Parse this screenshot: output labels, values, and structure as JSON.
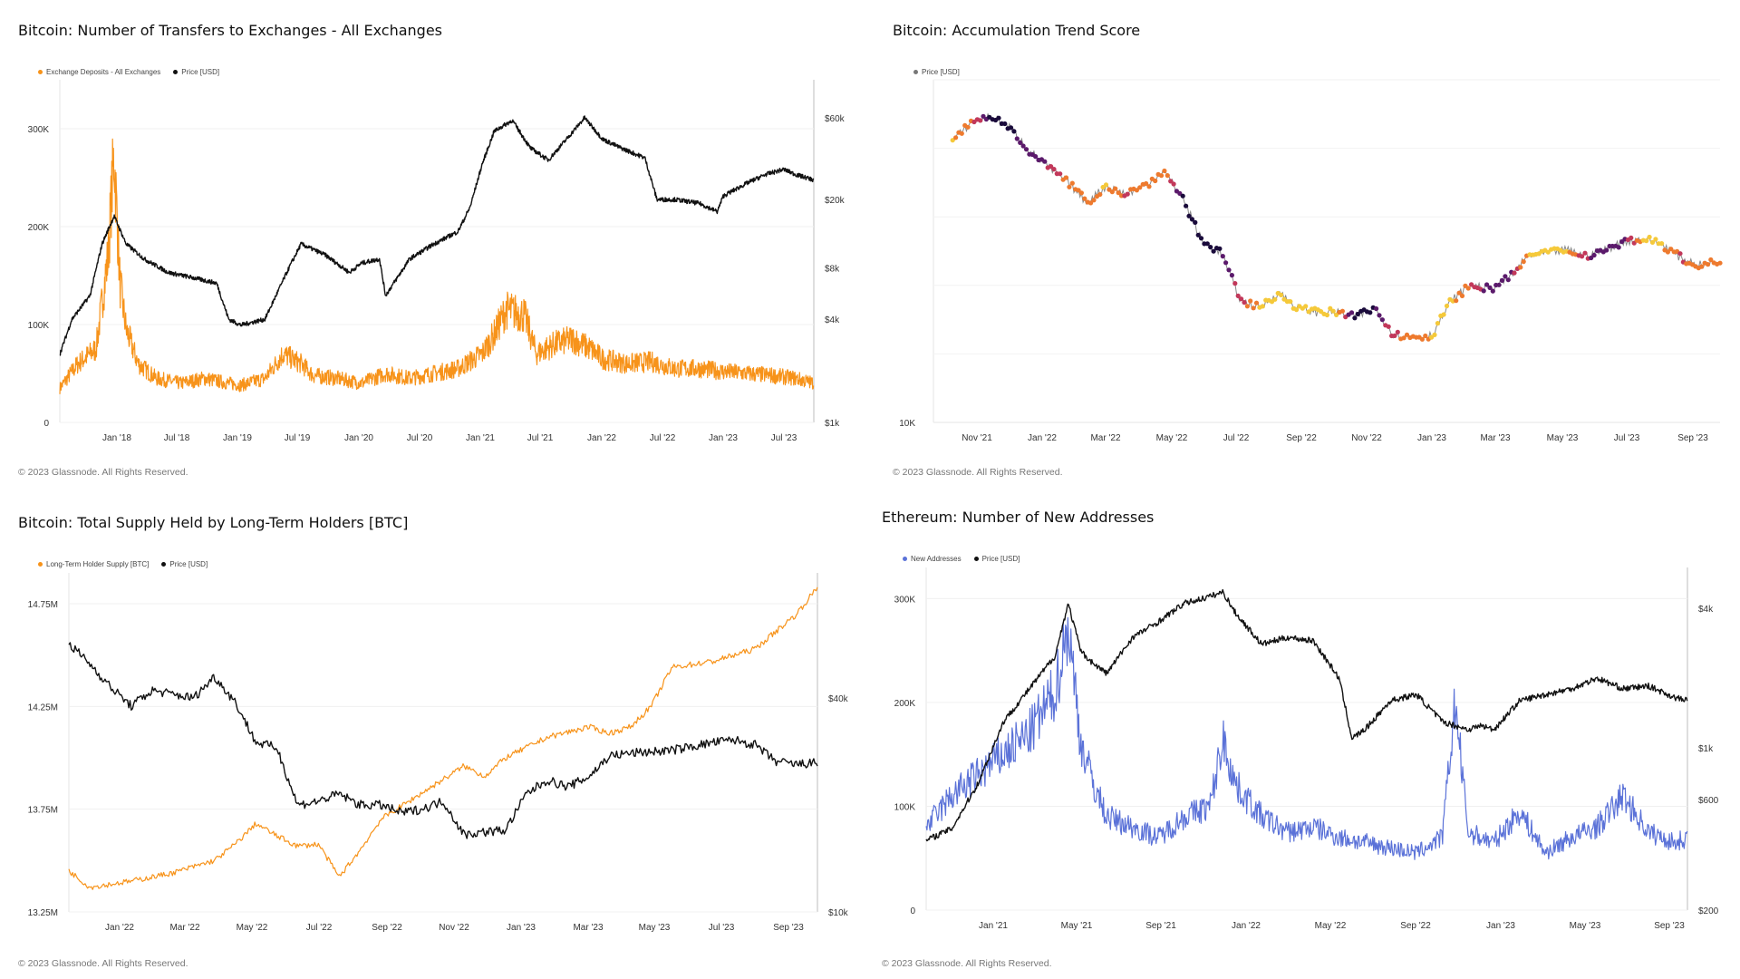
{
  "colors": {
    "orange": "#f7931a",
    "black": "#111111",
    "blue": "#5b72d8",
    "grid": "#eeeeee",
    "axis": "#cfcfcf"
  },
  "copyright": "© 2023 Glassnode. All Rights Reserved.",
  "chart_data": [
    {
      "type": "line",
      "title": "Bitcoin: Number of Transfers to Exchanges - All Exchanges",
      "legend": [
        "Exchange Deposits - All Exchanges",
        "Price [USD]"
      ],
      "x_ticks": [
        "Jan '18",
        "Jul '18",
        "Jan '19",
        "Jul '19",
        "Jan '20",
        "Jul '20",
        "Jan '21",
        "Jul '21",
        "Jan '22",
        "Jul '22",
        "Jan '23",
        "Jul '23"
      ],
      "y_left_ticks": [
        "0",
        "100K",
        "200K",
        "300K"
      ],
      "y_left_values": [
        0,
        100000,
        200000,
        300000
      ],
      "ylim_left": [
        0,
        350000
      ],
      "y_right_ticks": [
        "$1k",
        "$4k",
        "$8k",
        "$20k",
        "$60k"
      ],
      "y_right_values": [
        1000,
        4000,
        8000,
        20000,
        60000
      ],
      "ylim_right_log": [
        1000,
        100000
      ],
      "xlim": [
        2017.5,
        2023.75
      ],
      "series": [
        {
          "name": "Exchange Deposits - All Exchanges",
          "axis": "left",
          "color": "#f7931a",
          "x": [
            2017.5,
            2017.65,
            2017.8,
            2017.9,
            2017.95,
            2018.0,
            2018.05,
            2018.15,
            2018.3,
            2018.5,
            2018.7,
            2018.9,
            2019.0,
            2019.2,
            2019.35,
            2019.5,
            2019.6,
            2019.8,
            2020.0,
            2020.2,
            2020.4,
            2020.6,
            2020.8,
            2021.0,
            2021.1,
            2021.2,
            2021.35,
            2021.45,
            2021.6,
            2021.75,
            2021.9,
            2022.0,
            2022.2,
            2022.4,
            2022.6,
            2022.8,
            2023.0,
            2023.2,
            2023.4,
            2023.6,
            2023.75
          ],
          "y": [
            35000,
            60000,
            75000,
            170000,
            275000,
            140000,
            95000,
            60000,
            45000,
            40000,
            45000,
            40000,
            38000,
            45000,
            70000,
            60000,
            48000,
            45000,
            40000,
            50000,
            45000,
            50000,
            55000,
            70000,
            90000,
            115000,
            110000,
            70000,
            80000,
            85000,
            75000,
            65000,
            60000,
            62000,
            55000,
            55000,
            52000,
            50000,
            48000,
            45000,
            40000
          ]
        },
        {
          "name": "Price [USD]",
          "axis": "right",
          "color": "#111111",
          "x": [
            2017.5,
            2017.6,
            2017.75,
            2017.85,
            2017.95,
            2018.05,
            2018.2,
            2018.4,
            2018.6,
            2018.8,
            2018.9,
            2019.0,
            2019.2,
            2019.4,
            2019.5,
            2019.7,
            2019.9,
            2020.0,
            2020.15,
            2020.2,
            2020.4,
            2020.6,
            2020.8,
            2020.9,
            2021.0,
            2021.1,
            2021.25,
            2021.4,
            2021.55,
            2021.7,
            2021.85,
            2022.0,
            2022.15,
            2022.35,
            2022.45,
            2022.6,
            2022.8,
            2022.95,
            2023.0,
            2023.2,
            2023.35,
            2023.5,
            2023.6,
            2023.75
          ],
          "y": [
            2500,
            4000,
            5500,
            11000,
            16000,
            11000,
            9000,
            7500,
            7000,
            6500,
            4000,
            3700,
            4000,
            8000,
            11000,
            9500,
            7500,
            8500,
            9000,
            5500,
            9000,
            11000,
            13000,
            18000,
            32000,
            50000,
            58000,
            40000,
            34000,
            45000,
            60000,
            45000,
            40000,
            35000,
            20000,
            20000,
            19000,
            17000,
            21000,
            25000,
            28000,
            30000,
            28000,
            26000
          ]
        }
      ]
    },
    {
      "type": "scatter",
      "title": "Bitcoin: Accumulation Trend Score",
      "legend": [
        "Price [USD]"
      ],
      "x_ticks": [
        "Nov '21",
        "Jan '22",
        "Mar '22",
        "May '22",
        "Jul '22",
        "Sep '22",
        "Nov '22",
        "Jan '23",
        "Mar '23",
        "May '23",
        "Jul '23",
        "Sep '23"
      ],
      "y_left_ticks": [
        "10K"
      ],
      "xlim": [
        2021.7,
        2023.75
      ],
      "ylim_log": [
        10000,
        80000
      ],
      "series": [
        {
          "name": "Price [USD]",
          "color_scale": [
            "#1a0b3b",
            "#5b1a6b",
            "#c2385a",
            "#ee7a2e",
            "#f5c93a"
          ],
          "x": [
            2021.75,
            2021.8,
            2021.85,
            2021.9,
            2021.95,
            2022.0,
            2022.05,
            2022.1,
            2022.15,
            2022.2,
            2022.25,
            2022.3,
            2022.35,
            2022.4,
            2022.45,
            2022.5,
            2022.55,
            2022.6,
            2022.65,
            2022.7,
            2022.75,
            2022.8,
            2022.85,
            2022.9,
            2022.95,
            2023.0,
            2023.05,
            2023.1,
            2023.15,
            2023.2,
            2023.25,
            2023.3,
            2023.35,
            2023.4,
            2023.45,
            2023.5,
            2023.55,
            2023.6,
            2023.65,
            2023.7,
            2023.75
          ],
          "y": [
            55000,
            62000,
            64000,
            60000,
            52000,
            47000,
            43000,
            38000,
            42000,
            40000,
            42000,
            46000,
            39000,
            30000,
            28000,
            21000,
            20000,
            22000,
            20000,
            19500,
            19500,
            19000,
            20000,
            17000,
            16800,
            17000,
            21000,
            23000,
            22500,
            24000,
            27500,
            28000,
            28500,
            27500,
            28500,
            30000,
            30500,
            29500,
            27000,
            26000,
            26500
          ],
          "score": [
            0.9,
            0.7,
            0.05,
            0.1,
            0.2,
            0.4,
            0.7,
            0.8,
            0.9,
            0.6,
            0.8,
            0.85,
            0.05,
            0.05,
            0.1,
            0.5,
            0.9,
            0.95,
            0.9,
            0.95,
            0.9,
            0.05,
            0.1,
            0.6,
            0.7,
            0.9,
            0.95,
            0.6,
            0.2,
            0.3,
            0.9,
            0.95,
            0.9,
            0.4,
            0.2,
            0.3,
            0.9,
            0.9,
            0.6,
            0.8,
            0.7
          ]
        }
      ]
    },
    {
      "type": "line",
      "title": "Bitcoin: Total Supply Held by Long-Term Holders [BTC]",
      "legend": [
        "Long-Term Holder Supply [BTC]",
        "Price [USD]"
      ],
      "x_ticks": [
        "Jan '22",
        "Mar '22",
        "May '22",
        "Jul '22",
        "Sep '22",
        "Nov '22",
        "Jan '23",
        "Mar '23",
        "May '23",
        "Jul '23",
        "Sep '23"
      ],
      "y_left_ticks": [
        "13.25M",
        "13.75M",
        "14.25M",
        "14.75M"
      ],
      "y_left_values": [
        13250000,
        13750000,
        14250000,
        14750000
      ],
      "ylim_left": [
        13250000,
        14900000
      ],
      "y_right_ticks": [
        "$10k",
        "$40k"
      ],
      "y_right_values": [
        10000,
        40000
      ],
      "ylim_right_log": [
        10000,
        90000
      ],
      "xlim": [
        2021.95,
        2023.75
      ],
      "series": [
        {
          "name": "Long-Term Holder Supply [BTC]",
          "axis": "left",
          "color": "#f7931a",
          "x": [
            2021.95,
            2022.0,
            2022.1,
            2022.2,
            2022.3,
            2022.35,
            2022.4,
            2022.45,
            2022.5,
            2022.55,
            2022.6,
            2022.65,
            2022.7,
            2022.8,
            2022.9,
            2022.95,
            2023.0,
            2023.1,
            2023.2,
            2023.25,
            2023.3,
            2023.35,
            2023.4,
            2023.5,
            2023.6,
            2023.7,
            2023.75
          ],
          "y": [
            13450000,
            13370000,
            13400000,
            13440000,
            13500000,
            13580000,
            13680000,
            13620000,
            13570000,
            13580000,
            13420000,
            13550000,
            13700000,
            13830000,
            13960000,
            13910000,
            14000000,
            14100000,
            14150000,
            14120000,
            14150000,
            14250000,
            14440000,
            14470000,
            14530000,
            14700000,
            14830000
          ]
        },
        {
          "name": "Price [USD]",
          "axis": "right",
          "color": "#111111",
          "x": [
            2021.95,
            2022.0,
            2022.05,
            2022.1,
            2022.15,
            2022.2,
            2022.25,
            2022.3,
            2022.35,
            2022.4,
            2022.45,
            2022.5,
            2022.55,
            2022.6,
            2022.65,
            2022.7,
            2022.75,
            2022.8,
            2022.85,
            2022.9,
            2022.95,
            2023.0,
            2023.05,
            2023.1,
            2023.15,
            2023.2,
            2023.25,
            2023.3,
            2023.4,
            2023.5,
            2023.55,
            2023.6,
            2023.65,
            2023.7,
            2023.75
          ],
          "y": [
            57000,
            50000,
            43000,
            38000,
            42000,
            41000,
            40000,
            46000,
            39000,
            30000,
            29000,
            20000,
            20500,
            21500,
            20000,
            20000,
            19000,
            19500,
            20500,
            16500,
            16800,
            17000,
            21500,
            23500,
            22500,
            24000,
            27500,
            28000,
            28500,
            30000,
            30500,
            29500,
            26500,
            26000,
            26300
          ]
        }
      ]
    },
    {
      "type": "line",
      "title": "Ethereum: Number of New Addresses",
      "legend": [
        "New Addresses",
        "Price [USD]"
      ],
      "x_ticks": [
        "Jan '21",
        "May '21",
        "Sep '21",
        "Jan '22",
        "May '22",
        "Sep '22",
        "Jan '23",
        "May '23",
        "Sep '23"
      ],
      "y_left_ticks": [
        "0",
        "100K",
        "200K",
        "300K"
      ],
      "y_left_values": [
        0,
        100000,
        200000,
        300000
      ],
      "ylim_left": [
        0,
        330000
      ],
      "y_right_ticks": [
        "$200",
        "$600",
        "$1k",
        "$4k"
      ],
      "y_right_values": [
        200,
        600,
        1000,
        4000
      ],
      "ylim_right_log": [
        200,
        6000
      ],
      "xlim": [
        2020.8,
        2023.75
      ],
      "series": [
        {
          "name": "New Addresses",
          "axis": "left",
          "color": "#5b72d8",
          "x": [
            2020.8,
            2020.9,
            2021.0,
            2021.1,
            2021.2,
            2021.3,
            2021.35,
            2021.4,
            2021.45,
            2021.5,
            2021.6,
            2021.7,
            2021.8,
            2021.9,
            2021.95,
            2022.0,
            2022.1,
            2022.2,
            2022.3,
            2022.4,
            2022.5,
            2022.6,
            2022.7,
            2022.8,
            2022.85,
            2022.9,
            2022.95,
            2023.0,
            2023.1,
            2023.2,
            2023.3,
            2023.4,
            2023.5,
            2023.6,
            2023.7,
            2023.75
          ],
          "y": [
            80000,
            110000,
            130000,
            150000,
            170000,
            210000,
            275000,
            160000,
            120000,
            90000,
            80000,
            70000,
            90000,
            100000,
            165000,
            120000,
            90000,
            75000,
            80000,
            70000,
            65000,
            60000,
            55000,
            70000,
            200000,
            75000,
            70000,
            65000,
            95000,
            55000,
            70000,
            80000,
            110000,
            75000,
            65000,
            70000
          ]
        },
        {
          "name": "Price [USD]",
          "axis": "right",
          "color": "#111111",
          "x": [
            2020.8,
            2020.9,
            2021.0,
            2021.1,
            2021.2,
            2021.3,
            2021.35,
            2021.4,
            2021.45,
            2021.5,
            2021.6,
            2021.7,
            2021.8,
            2021.9,
            2021.95,
            2022.0,
            2022.1,
            2022.2,
            2022.3,
            2022.4,
            2022.45,
            2022.5,
            2022.6,
            2022.7,
            2022.8,
            2022.9,
            2022.95,
            2023.0,
            2023.1,
            2023.2,
            2023.3,
            2023.4,
            2023.5,
            2023.6,
            2023.7,
            2023.75
          ],
          "y": [
            400,
            450,
            700,
            1300,
            1800,
            2500,
            4200,
            2600,
            2300,
            2100,
            3000,
            3500,
            4200,
            4500,
            4700,
            3800,
            2800,
            3000,
            2900,
            2000,
            1100,
            1200,
            1600,
            1700,
            1300,
            1200,
            1250,
            1200,
            1600,
            1700,
            1800,
            2000,
            1800,
            1850,
            1650,
            1600
          ]
        }
      ]
    }
  ]
}
